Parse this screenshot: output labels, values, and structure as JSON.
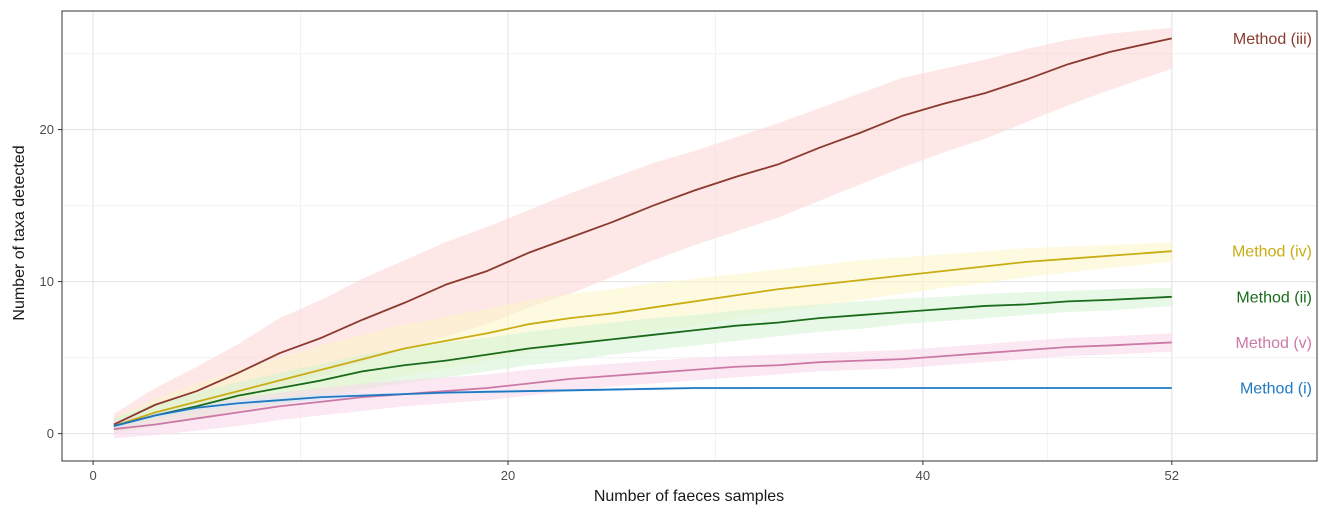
{
  "chart_data": {
    "type": "line",
    "title": "",
    "xlabel": "Number of faeces samples",
    "ylabel": "Number of taxa detected",
    "xlim": [
      -1.5,
      59
    ],
    "ylim": [
      -1.8,
      27.8
    ],
    "x_ticks": [
      0,
      20,
      40,
      52
    ],
    "x_tick_labels": [
      "0",
      "20",
      "40",
      "52"
    ],
    "x_minor_ticks": [
      10,
      30,
      46
    ],
    "y_ticks": [
      0,
      10,
      20
    ],
    "y_tick_labels": [
      "0",
      "10",
      "20"
    ],
    "y_minor_ticks": [
      5,
      15,
      25
    ],
    "grid": true,
    "legend": "direct labels at right end of lines",
    "x": [
      1,
      3,
      5,
      7,
      9,
      11,
      13,
      15,
      17,
      19,
      21,
      23,
      25,
      27,
      29,
      31,
      33,
      35,
      37,
      39,
      41,
      43,
      45,
      47,
      49,
      52
    ],
    "series": [
      {
        "name": "Method (iii)",
        "color": "#8b3a2e",
        "band_color": "#fbd3d3",
        "values": [
          0.6,
          1.9,
          2.8,
          4.0,
          5.3,
          6.3,
          7.5,
          8.6,
          9.8,
          10.7,
          11.9,
          12.9,
          13.9,
          15.0,
          16.0,
          16.9,
          17.7,
          18.8,
          19.8,
          20.9,
          21.7,
          22.4,
          23.3,
          24.3,
          25.1,
          26.0
        ],
        "lower": [
          0.0,
          1.0,
          1.5,
          2.2,
          3.1,
          3.8,
          4.7,
          5.5,
          6.4,
          7.2,
          8.3,
          9.2,
          10.3,
          11.4,
          12.4,
          13.3,
          14.2,
          15.3,
          16.4,
          17.5,
          18.5,
          19.4,
          20.5,
          21.6,
          22.6,
          24.0
        ],
        "upper": [
          1.3,
          3.0,
          4.4,
          5.9,
          7.6,
          8.8,
          10.2,
          11.4,
          12.6,
          13.6,
          14.7,
          15.8,
          16.8,
          17.8,
          18.6,
          19.5,
          20.4,
          21.4,
          22.4,
          23.4,
          24.0,
          24.6,
          25.3,
          25.9,
          26.3,
          26.7
        ]
      },
      {
        "name": "Method (iv)",
        "color": "#c9ad12",
        "band_color": "#fbf5c7",
        "values": [
          0.5,
          1.4,
          2.1,
          2.8,
          3.5,
          4.2,
          4.9,
          5.6,
          6.1,
          6.6,
          7.2,
          7.6,
          7.9,
          8.3,
          8.7,
          9.1,
          9.5,
          9.8,
          10.1,
          10.4,
          10.7,
          11.0,
          11.3,
          11.5,
          11.7,
          12.0
        ],
        "lower": [
          0.0,
          0.6,
          1.0,
          1.5,
          2.0,
          2.6,
          3.2,
          3.8,
          4.3,
          4.8,
          5.4,
          5.9,
          6.3,
          6.7,
          7.1,
          7.6,
          8.0,
          8.4,
          8.8,
          9.2,
          9.6,
          9.9,
          10.3,
          10.6,
          10.9,
          11.3
        ],
        "upper": [
          1.0,
          2.3,
          3.3,
          4.2,
          5.0,
          5.8,
          6.5,
          7.2,
          7.7,
          8.2,
          8.8,
          9.2,
          9.5,
          9.9,
          10.2,
          10.5,
          10.8,
          11.1,
          11.4,
          11.6,
          11.8,
          12.0,
          12.2,
          12.3,
          12.4,
          12.6
        ]
      },
      {
        "name": "Method (ii)",
        "color": "#1a6b1a",
        "band_color": "#d3f3d3",
        "values": [
          0.5,
          1.2,
          1.8,
          2.5,
          3.0,
          3.5,
          4.1,
          4.5,
          4.8,
          5.2,
          5.6,
          5.9,
          6.2,
          6.5,
          6.8,
          7.1,
          7.3,
          7.6,
          7.8,
          8.0,
          8.2,
          8.4,
          8.5,
          8.7,
          8.8,
          9.0
        ],
        "lower": [
          0.0,
          0.5,
          1.0,
          1.5,
          1.9,
          2.4,
          2.9,
          3.3,
          3.7,
          4.1,
          4.5,
          4.8,
          5.2,
          5.5,
          5.8,
          6.1,
          6.4,
          6.7,
          6.9,
          7.2,
          7.4,
          7.6,
          7.8,
          8.0,
          8.1,
          8.4
        ],
        "upper": [
          1.0,
          2.0,
          2.7,
          3.4,
          4.0,
          4.6,
          5.2,
          5.6,
          6.0,
          6.3,
          6.7,
          7.0,
          7.3,
          7.6,
          7.8,
          8.1,
          8.3,
          8.5,
          8.7,
          8.9,
          9.0,
          9.2,
          9.3,
          9.4,
          9.5,
          9.6
        ]
      },
      {
        "name": "Method (v)",
        "color": "#cc79a7",
        "band_color": "#f9d6ea",
        "values": [
          0.3,
          0.6,
          1.0,
          1.4,
          1.8,
          2.1,
          2.4,
          2.6,
          2.8,
          3.0,
          3.3,
          3.6,
          3.8,
          4.0,
          4.2,
          4.4,
          4.5,
          4.7,
          4.8,
          4.9,
          5.1,
          5.3,
          5.5,
          5.7,
          5.8,
          6.0
        ],
        "lower": [
          -0.3,
          -0.1,
          0.2,
          0.5,
          0.9,
          1.2,
          1.5,
          1.8,
          2.0,
          2.2,
          2.5,
          2.8,
          3.1,
          3.3,
          3.5,
          3.7,
          3.9,
          4.1,
          4.2,
          4.3,
          4.5,
          4.7,
          4.9,
          5.1,
          5.2,
          5.4
        ],
        "upper": [
          0.9,
          1.3,
          1.8,
          2.3,
          2.7,
          3.0,
          3.3,
          3.5,
          3.7,
          3.9,
          4.2,
          4.4,
          4.6,
          4.8,
          5.0,
          5.1,
          5.2,
          5.3,
          5.4,
          5.5,
          5.7,
          5.9,
          6.1,
          6.3,
          6.4,
          6.6
        ]
      },
      {
        "name": "Method (i)",
        "color": "#1f78c1",
        "band_color": "#d6e7f7",
        "values": [
          0.5,
          1.2,
          1.7,
          2.0,
          2.2,
          2.4,
          2.5,
          2.6,
          2.7,
          2.75,
          2.8,
          2.85,
          2.9,
          2.95,
          3.0,
          3.0,
          3.0,
          3.0,
          3.0,
          3.0,
          3.0,
          3.0,
          3.0,
          3.0,
          3.0,
          3.0
        ],
        "lower": [
          0.3,
          1.0,
          1.5,
          1.8,
          2.0,
          2.2,
          2.35,
          2.5,
          2.6,
          2.65,
          2.7,
          2.75,
          2.8,
          2.85,
          2.9,
          2.9,
          2.95,
          2.95,
          2.95,
          2.95,
          2.95,
          2.95,
          2.95,
          2.95,
          2.95,
          2.95
        ],
        "upper": [
          0.7,
          1.4,
          1.9,
          2.2,
          2.4,
          2.6,
          2.65,
          2.7,
          2.8,
          2.85,
          2.9,
          2.95,
          3.0,
          3.05,
          3.05,
          3.05,
          3.05,
          3.05,
          3.05,
          3.05,
          3.05,
          3.05,
          3.05,
          3.05,
          3.05,
          3.05
        ]
      }
    ]
  }
}
